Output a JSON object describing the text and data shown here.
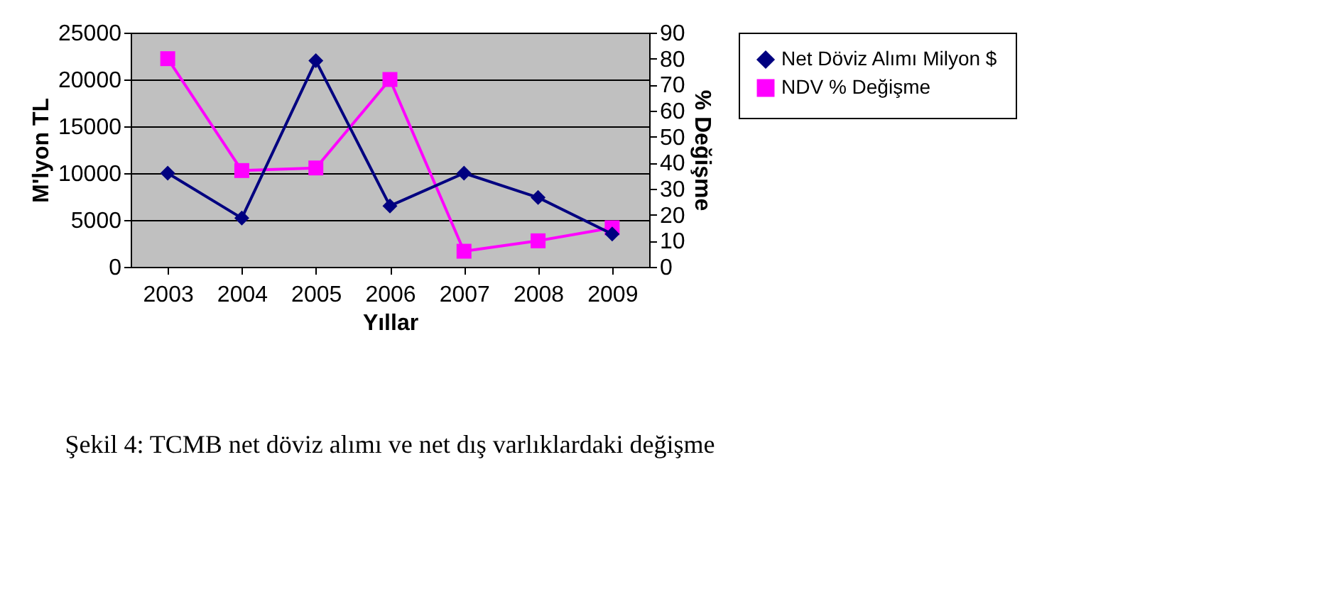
{
  "chart_data": {
    "type": "line",
    "xlabel": "Yıllar",
    "ylabel": "M'lyon TL",
    "y2label": "% Değişme",
    "categories": [
      "2003",
      "2004",
      "2005",
      "2006",
      "2007",
      "2008",
      "2009"
    ],
    "series": [
      {
        "name": "Net Döviz Alımı Milyon $",
        "color": "#000080",
        "marker": "diamond",
        "values": [
          10000,
          5200,
          22000,
          6500,
          10000,
          7400,
          3500
        ]
      },
      {
        "name": "NDV % Değişme",
        "color": "#ff00ff",
        "marker": "square",
        "axis": "y2",
        "values": [
          80,
          37,
          38,
          72,
          6,
          10,
          15
        ]
      }
    ],
    "ylim": [
      0,
      25000
    ],
    "yticks": [
      0,
      5000,
      10000,
      15000,
      20000,
      25000
    ],
    "y2lim": [
      0,
      90
    ],
    "y2ticks": [
      0,
      10,
      20,
      30,
      40,
      50,
      60,
      70,
      80,
      90
    ],
    "grid": "y",
    "legend": "right",
    "annotations": [
      "Şekil 4: TCMB  net döviz alımı ve net dış varlıklardaki değişme"
    ]
  }
}
